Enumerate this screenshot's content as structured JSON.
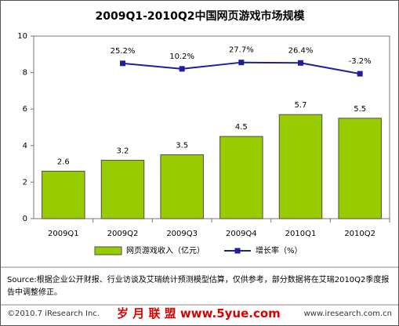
{
  "chart_data": {
    "type": "bar",
    "title": "2009Q1-2010Q2中国网页游戏市场规模",
    "categories": [
      "2009Q1",
      "2009Q2",
      "2009Q3",
      "2009Q4",
      "2010Q1",
      "2010Q2"
    ],
    "series": [
      {
        "name": "网页游戏收入（亿元）",
        "type": "bar",
        "color": "#99cc00",
        "values": [
          2.6,
          3.2,
          3.5,
          4.5,
          5.7,
          5.5
        ]
      },
      {
        "name": "增长率（%）",
        "type": "line",
        "axis": "y2",
        "color": "#1f1f99",
        "values": [
          null,
          25.2,
          10.2,
          27.7,
          26.4,
          -3.2
        ],
        "value_labels": [
          null,
          "25.2%",
          "10.2%",
          "27.7%",
          "26.4%",
          "-3.2%"
        ]
      }
    ],
    "ylim": [
      0,
      10
    ],
    "yticks": [
      0,
      2,
      4,
      6,
      8,
      10
    ],
    "y2lim": [
      -400,
      100
    ],
    "grid": false,
    "legend": "bottom"
  },
  "footer": {
    "source": "Source:根据企业公开财报、行业访谈及艾瑞统计预测模型估算，仅供参考，部分数据将在艾瑞2010Q2季度报告中调整修正。",
    "copyright": "©2010.7 iResearch Inc.",
    "watermark": "岁 月 联 盟  www.5yue.com",
    "website": "www.iresearch.com.cn"
  }
}
